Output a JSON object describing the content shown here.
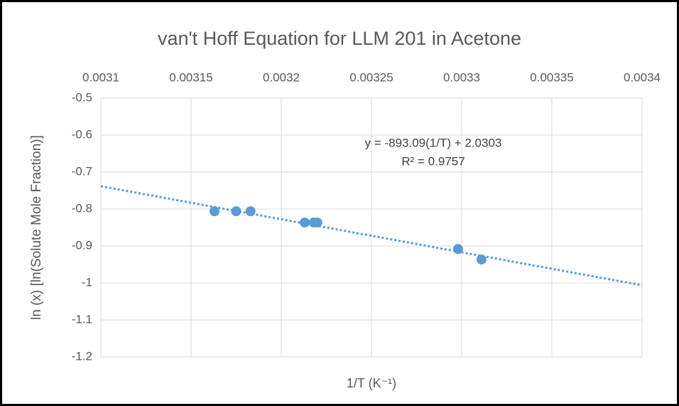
{
  "chart_data": {
    "type": "scatter",
    "title": "van't Hoff Equation for LLM 201 in Acetone",
    "x_label": "1/T (K⁻¹)",
    "y_label": "ln (x) [ln(Solute Mole Fraction)]",
    "series": [
      {
        "color": "#5b9bd5",
        "x": [
          0.003163,
          0.003175,
          0.003183,
          0.003213,
          0.003218,
          0.00322,
          0.003298,
          0.003311
        ],
        "values": [
          -0.806,
          -0.806,
          -0.806,
          -0.8365,
          -0.8365,
          -0.8365,
          -0.908,
          -0.9365
        ]
      }
    ],
    "trendline": {
      "slope": -893.09,
      "intercept": 2.0303,
      "color": "#5b9bd5",
      "equation": "y = -893.09(1/T) + 2.0303",
      "r2": "R² = 0.9757"
    },
    "xlim": [
      0.0031,
      0.0034
    ],
    "xticks": [
      0.0031,
      0.00315,
      0.0032,
      0.00325,
      0.0033,
      0.00335,
      0.0034
    ],
    "ylim": [
      -1.2,
      -0.5
    ],
    "yticks": [
      -0.5,
      -0.6,
      -0.7,
      -0.8,
      -0.9,
      -1,
      -1.1,
      -1.2
    ],
    "grid": true
  }
}
